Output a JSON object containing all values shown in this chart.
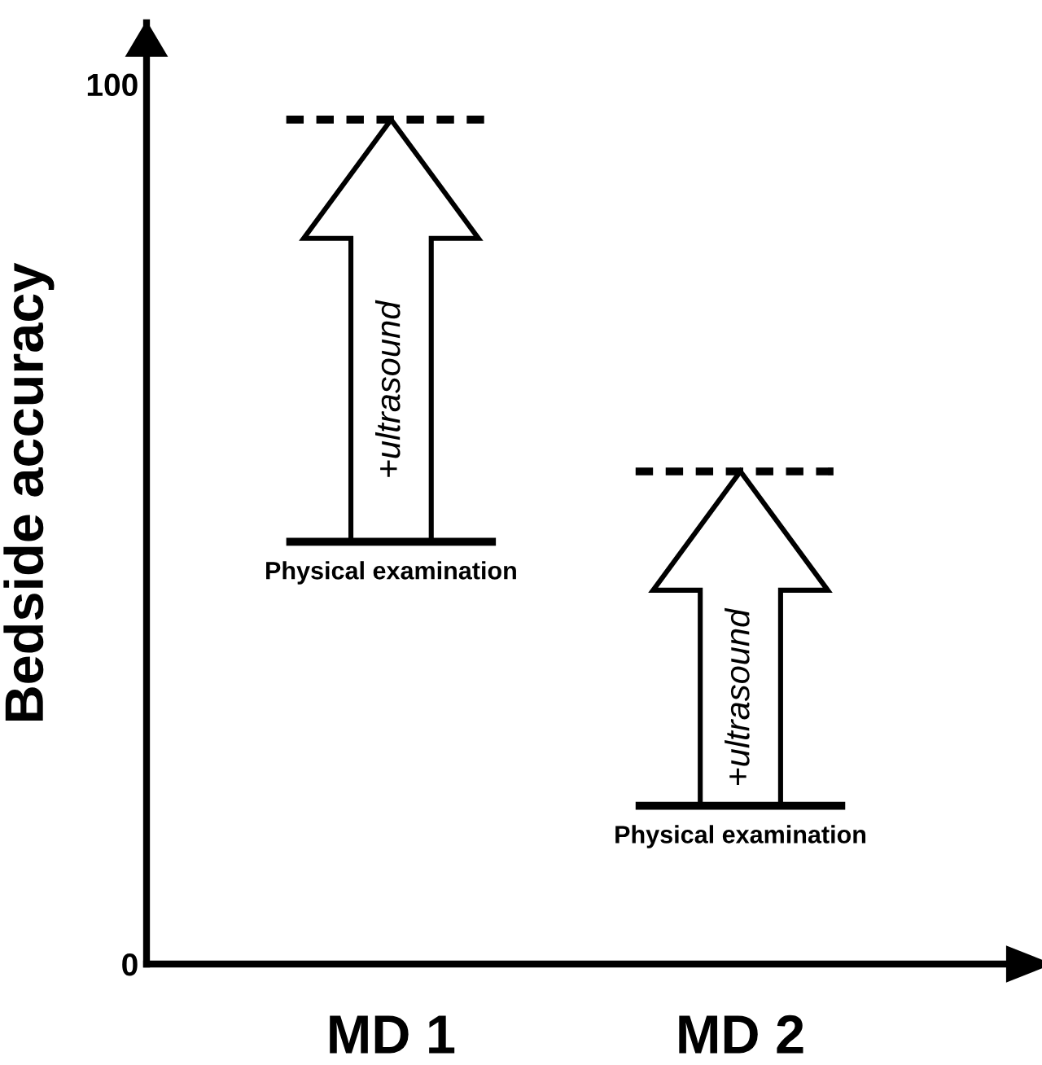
{
  "chart_data": {
    "type": "scatter",
    "ylabel": "Bedside accuracy",
    "categories": [
      "MD 1",
      "MD 2"
    ],
    "ylim": [
      0,
      107
    ],
    "yticks": [
      0,
      100
    ],
    "ref_lines": [
      {
        "axis": "y",
        "value": 48,
        "label": "Physical examination",
        "color": "#000000",
        "line_style": "solid"
      },
      {
        "axis": "y",
        "value": 96,
        "color": "#000000",
        "line_style": "dashed"
      },
      {
        "axis": "y",
        "value": 18,
        "label": "Physical examination",
        "color": "#000000",
        "line_style": "solid"
      },
      {
        "axis": "y",
        "value": 56,
        "color": "#000000",
        "line_style": "dashed"
      }
    ],
    "annotations": [
      "+ultrasound",
      "+ultrasound"
    ]
  }
}
